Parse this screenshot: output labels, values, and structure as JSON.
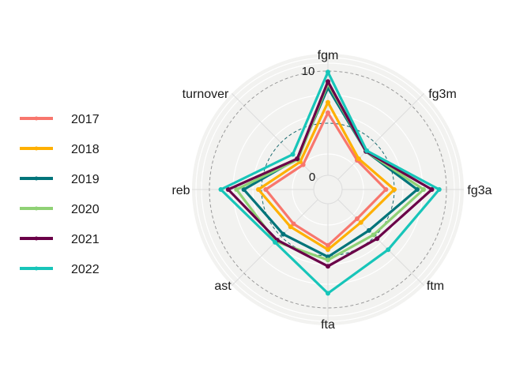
{
  "chart_data": {
    "type": "radar",
    "axes": [
      "fgm",
      "fg3m",
      "fg3a",
      "ftm",
      "fta",
      "ast",
      "reb",
      "turnover"
    ],
    "r_range": [
      0,
      10
    ],
    "tick_labels": [
      "0",
      "10"
    ],
    "grid": true,
    "legend_position": "left",
    "series": [
      {
        "name": "2017",
        "color": "#F8766D",
        "values": [
          6.0,
          2.6,
          4.2,
          2.6,
          4.0,
          3.3,
          4.6,
          2.0
        ]
      },
      {
        "name": "2018",
        "color": "#FFB000",
        "values": [
          7.0,
          2.8,
          5.0,
          3.1,
          4.4,
          3.7,
          5.3,
          2.4
        ]
      },
      {
        "name": "2019",
        "color": "#00747A",
        "values": [
          8.4,
          3.8,
          7.2,
          4.2,
          5.1,
          4.7,
          6.7,
          2.8
        ]
      },
      {
        "name": "2020",
        "color": "#8FD175",
        "values": [
          8.8,
          3.8,
          7.8,
          4.8,
          5.4,
          5.7,
          7.4,
          2.7
        ]
      },
      {
        "name": "2021",
        "color": "#6A0048",
        "values": [
          9.0,
          3.8,
          8.6,
          5.3,
          6.0,
          5.5,
          8.2,
          2.8
        ]
      },
      {
        "name": "2022",
        "color": "#17C5B9",
        "values": [
          9.9,
          3.9,
          9.3,
          6.8,
          8.6,
          5.8,
          8.9,
          3.4
        ]
      }
    ]
  }
}
